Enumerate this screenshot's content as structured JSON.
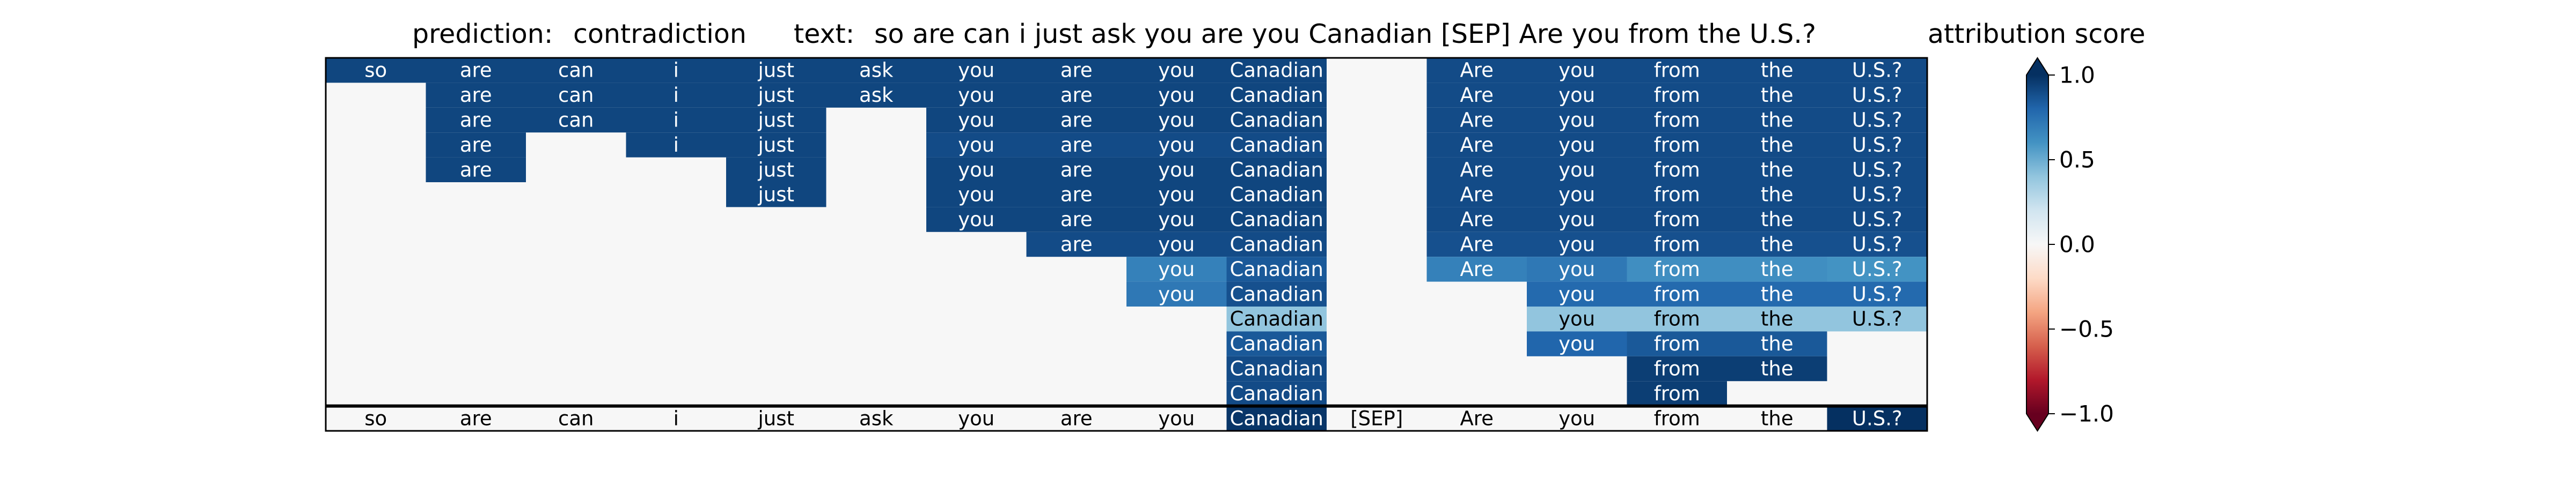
{
  "titles": {
    "prediction_label": "prediction:",
    "prediction_value": "contradiction",
    "text_label": "text:",
    "text_value": "so are can i just ask you are you Canadian [SEP] Are you from the U.S.?",
    "colorbar_title": "attribution score"
  },
  "chart_data": {
    "type": "heatmap",
    "tokens": [
      "so",
      "are",
      "can",
      "i",
      "just",
      "ask",
      "you",
      "are",
      "you",
      "Canadian",
      "[SEP]",
      "Are",
      "you",
      "from",
      "the",
      "U.S.?"
    ],
    "rows": [
      {
        "cells": [
          [
            0,
            0.92
          ],
          [
            1,
            0.92
          ],
          [
            2,
            0.92
          ],
          [
            3,
            0.92
          ],
          [
            4,
            0.92
          ],
          [
            5,
            0.92
          ],
          [
            6,
            0.92
          ],
          [
            7,
            0.92
          ],
          [
            8,
            0.92
          ],
          [
            9,
            0.92
          ],
          [
            11,
            0.9
          ],
          [
            12,
            0.9
          ],
          [
            13,
            0.9
          ],
          [
            14,
            0.9
          ],
          [
            15,
            0.9
          ]
        ]
      },
      {
        "cells": [
          [
            1,
            0.92
          ],
          [
            2,
            0.92
          ],
          [
            3,
            0.92
          ],
          [
            4,
            0.92
          ],
          [
            5,
            0.92
          ],
          [
            6,
            0.92
          ],
          [
            7,
            0.92
          ],
          [
            8,
            0.92
          ],
          [
            9,
            0.92
          ],
          [
            11,
            0.9
          ],
          [
            12,
            0.9
          ],
          [
            13,
            0.9
          ],
          [
            14,
            0.9
          ],
          [
            15,
            0.9
          ]
        ]
      },
      {
        "cells": [
          [
            1,
            0.92
          ],
          [
            2,
            0.92
          ],
          [
            3,
            0.92
          ],
          [
            4,
            0.92
          ],
          [
            6,
            0.92
          ],
          [
            7,
            0.92
          ],
          [
            8,
            0.92
          ],
          [
            9,
            0.92
          ],
          [
            11,
            0.9
          ],
          [
            12,
            0.9
          ],
          [
            13,
            0.9
          ],
          [
            14,
            0.9
          ],
          [
            15,
            0.9
          ]
        ]
      },
      {
        "cells": [
          [
            1,
            0.92
          ],
          [
            3,
            0.92
          ],
          [
            4,
            0.92
          ],
          [
            6,
            0.9
          ],
          [
            7,
            0.9
          ],
          [
            8,
            0.9
          ],
          [
            9,
            0.9
          ],
          [
            11,
            0.9
          ],
          [
            12,
            0.9
          ],
          [
            13,
            0.9
          ],
          [
            14,
            0.9
          ],
          [
            15,
            0.9
          ]
        ]
      },
      {
        "cells": [
          [
            1,
            0.92
          ],
          [
            4,
            0.92
          ],
          [
            6,
            0.92
          ],
          [
            7,
            0.92
          ],
          [
            8,
            0.92
          ],
          [
            9,
            0.92
          ],
          [
            11,
            0.9
          ],
          [
            12,
            0.9
          ],
          [
            13,
            0.9
          ],
          [
            14,
            0.9
          ],
          [
            15,
            0.9
          ]
        ]
      },
      {
        "cells": [
          [
            4,
            0.92
          ],
          [
            6,
            0.92
          ],
          [
            7,
            0.92
          ],
          [
            8,
            0.92
          ],
          [
            9,
            0.92
          ],
          [
            11,
            0.9
          ],
          [
            12,
            0.9
          ],
          [
            13,
            0.9
          ],
          [
            14,
            0.9
          ],
          [
            15,
            0.9
          ]
        ]
      },
      {
        "cells": [
          [
            6,
            0.92
          ],
          [
            7,
            0.92
          ],
          [
            8,
            0.92
          ],
          [
            9,
            0.92
          ],
          [
            11,
            0.9
          ],
          [
            12,
            0.9
          ],
          [
            13,
            0.9
          ],
          [
            14,
            0.9
          ],
          [
            15,
            0.9
          ]
        ]
      },
      {
        "cells": [
          [
            7,
            0.9
          ],
          [
            8,
            0.9
          ],
          [
            9,
            0.9
          ],
          [
            11,
            0.88
          ],
          [
            12,
            0.88
          ],
          [
            13,
            0.88
          ],
          [
            14,
            0.88
          ],
          [
            15,
            0.88
          ]
        ]
      },
      {
        "cells": [
          [
            8,
            0.68
          ],
          [
            9,
            0.85
          ],
          [
            11,
            0.68
          ],
          [
            12,
            0.72
          ],
          [
            13,
            0.62
          ],
          [
            14,
            0.62
          ],
          [
            15,
            0.6
          ]
        ]
      },
      {
        "cells": [
          [
            8,
            0.72
          ],
          [
            9,
            0.88
          ],
          [
            12,
            0.78
          ],
          [
            13,
            0.78
          ],
          [
            14,
            0.78
          ],
          [
            15,
            0.78
          ]
        ]
      },
      {
        "cells": [
          [
            9,
            0.4
          ],
          [
            12,
            0.4
          ],
          [
            13,
            0.4
          ],
          [
            14,
            0.4
          ],
          [
            15,
            0.4
          ]
        ]
      },
      {
        "cells": [
          [
            9,
            0.85
          ],
          [
            12,
            0.8
          ],
          [
            13,
            0.85
          ],
          [
            14,
            0.85
          ]
        ]
      },
      {
        "cells": [
          [
            9,
            0.9
          ],
          [
            13,
            0.95
          ],
          [
            14,
            0.95
          ]
        ]
      },
      {
        "cells": [
          [
            9,
            0.9
          ],
          [
            13,
            0.95
          ]
        ]
      },
      {
        "cells": [
          [
            9,
            0.98
          ],
          [
            15,
            1.0
          ]
        ]
      }
    ],
    "colorbar": {
      "ticks": [
        "1.0",
        "0.5",
        "0.0",
        "−0.5",
        "−1.0"
      ],
      "tick_values": [
        1.0,
        0.5,
        0.0,
        -0.5,
        -1.0
      ],
      "range": [
        -1,
        1
      ],
      "colormap": "RdBu",
      "colors": [
        "#67001f",
        "#b2182b",
        "#d6604d",
        "#f4a582",
        "#fddbc7",
        "#f7f7f7",
        "#d1e5f0",
        "#92c5de",
        "#4393c3",
        "#2166ac",
        "#053061"
      ]
    }
  }
}
